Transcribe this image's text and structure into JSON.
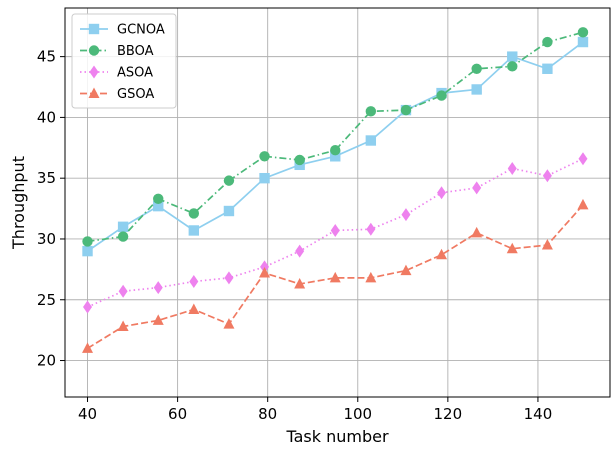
{
  "chart_data": {
    "type": "line",
    "title": "",
    "xlabel": "Task number",
    "ylabel": "Throughput",
    "xlim": [
      35,
      156
    ],
    "ylim": [
      17,
      49
    ],
    "xticks": [
      40,
      60,
      80,
      100,
      120,
      140
    ],
    "yticks": [
      20,
      25,
      30,
      35,
      40,
      45
    ],
    "grid": true,
    "legend_position": "top-left",
    "x": [
      40,
      47.9,
      55.7,
      63.6,
      71.4,
      79.3,
      87.1,
      95,
      102.9,
      110.7,
      118.6,
      126.4,
      134.3,
      142.1,
      150
    ],
    "series": [
      {
        "name": "GCNOA",
        "color": "#8ecfef",
        "marker": "square",
        "linestyle": "solid",
        "values": [
          29.0,
          31.0,
          32.7,
          30.7,
          32.3,
          35.0,
          36.1,
          36.8,
          38.1,
          40.6,
          42.0,
          42.3,
          45.0,
          44.0,
          46.2
        ]
      },
      {
        "name": "BBOA",
        "color": "#4cb97a",
        "marker": "circle",
        "linestyle": "dashdot",
        "values": [
          29.8,
          30.2,
          33.3,
          32.1,
          34.8,
          36.8,
          36.5,
          37.3,
          40.5,
          40.6,
          41.8,
          44.0,
          44.2,
          46.2,
          47.0
        ]
      },
      {
        "name": "ASOA",
        "color": "#ee82ee",
        "marker": "diamond",
        "linestyle": "dotted",
        "values": [
          24.4,
          25.7,
          26.0,
          26.5,
          26.8,
          27.7,
          29.0,
          30.7,
          30.8,
          32.0,
          33.8,
          34.2,
          35.8,
          35.2,
          36.6
        ]
      },
      {
        "name": "GSOA",
        "color": "#f07a62",
        "marker": "triangle",
        "linestyle": "dashed",
        "values": [
          21.0,
          22.8,
          23.3,
          24.2,
          23.0,
          27.2,
          26.3,
          26.8,
          26.8,
          27.4,
          28.7,
          30.5,
          29.2,
          29.5,
          32.8
        ]
      }
    ]
  }
}
